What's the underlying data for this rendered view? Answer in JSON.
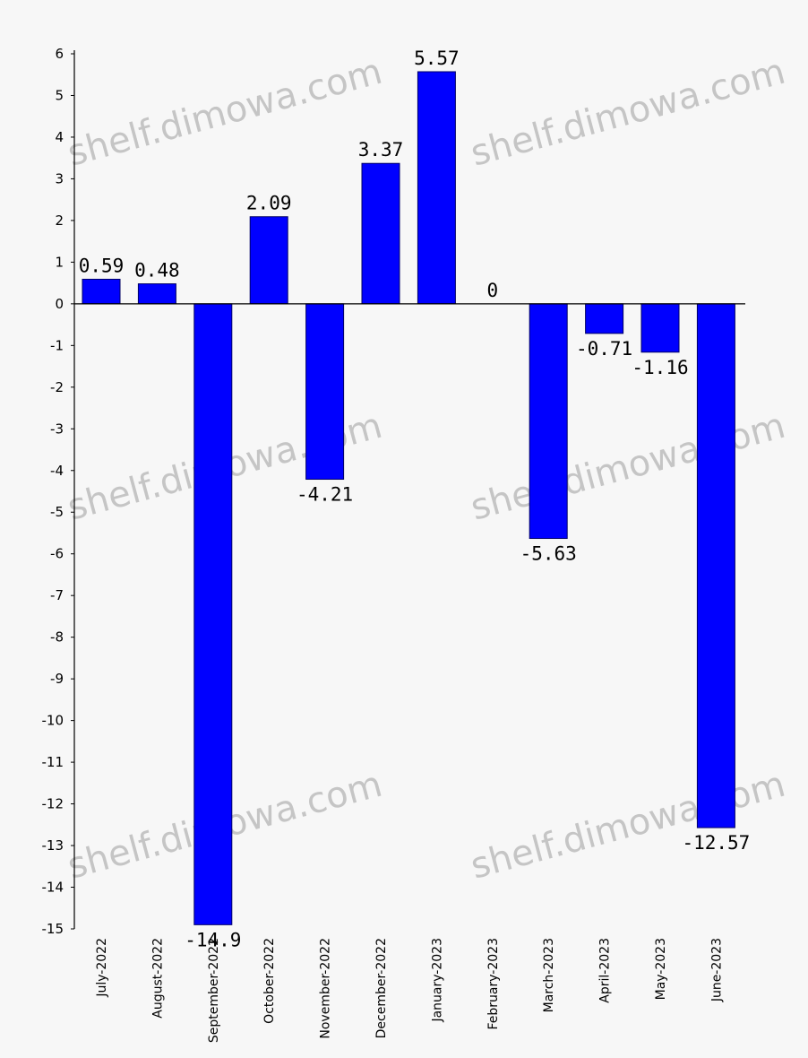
{
  "chart_data": {
    "type": "bar",
    "categories": [
      "July-2022",
      "August-2022",
      "September-2022",
      "October-2022",
      "November-2022",
      "December-2022",
      "January-2023",
      "February-2023",
      "March-2023",
      "April-2023",
      "May-2023",
      "June-2023"
    ],
    "values": [
      0.59,
      0.48,
      -14.9,
      2.09,
      -4.21,
      3.37,
      5.57,
      0,
      -5.63,
      -0.71,
      -1.16,
      -12.57
    ],
    "data_labels": [
      "0.59",
      "0.48",
      "-14.9",
      "2.09",
      "-4.21",
      "3.37",
      "5.57",
      "0",
      "-5.63",
      "-0.71",
      "-1.16",
      "-12.57"
    ],
    "ylim": [
      -15,
      6
    ],
    "yticks": [
      6,
      5,
      4,
      3,
      2,
      1,
      0,
      -1,
      -2,
      -3,
      -4,
      -5,
      -6,
      -7,
      -8,
      -9,
      -10,
      -11,
      -12,
      -13,
      -14,
      -15
    ],
    "bar_color": "#0000ff",
    "bar_border": "#000066",
    "grid": false,
    "title": "",
    "xlabel": "",
    "ylabel": ""
  },
  "watermark": "shelf.dimowa.com"
}
